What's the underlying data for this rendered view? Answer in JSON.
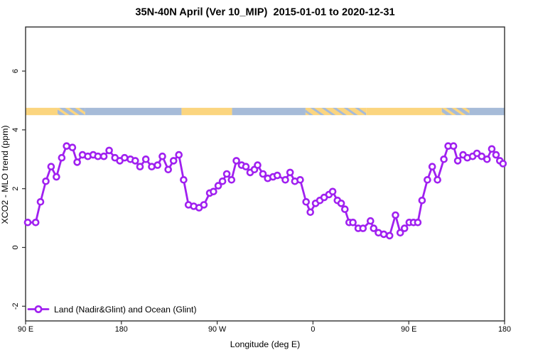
{
  "title": "35N-40N April (Ver 10_MIP)  2015-01-01 to 2020-12-31",
  "legend": {
    "label": "Land (Nadir&Glint) and Ocean (Glint)"
  },
  "colors": {
    "series_purple": "#A020F0",
    "land_yellow": "#FBD57F",
    "ocean_blue": "#A6BBD8",
    "frame": "#303030"
  },
  "chart_data": {
    "type": "line",
    "title": "35N-40N April (Ver 10_MIP)  2015-01-01 to 2020-12-31",
    "xlabel": "Longitude (deg E)",
    "ylabel": "XCO2 - MLO trend (ppm)",
    "xlim": [
      90,
      540
    ],
    "ylim": [
      -2.5,
      7.5
    ],
    "grid": false,
    "legend_position": "bottom-left",
    "x_ticks": [
      {
        "pos": 90,
        "label": "90 E"
      },
      {
        "pos": 180,
        "label": "180"
      },
      {
        "pos": 270,
        "label": "90 W"
      },
      {
        "pos": 360,
        "label": "0"
      },
      {
        "pos": 450,
        "label": "90 E"
      },
      {
        "pos": 540,
        "label": "180"
      }
    ],
    "y_ticks": [
      {
        "pos": -2,
        "label": "-2"
      },
      {
        "pos": 0,
        "label": "0"
      },
      {
        "pos": 2,
        "label": "2"
      },
      {
        "pos": 4,
        "label": "4"
      },
      {
        "pos": 6,
        "label": "6"
      }
    ],
    "series": [
      {
        "name": "Land (Nadir&Glint) and Ocean (Glint)",
        "color": "#A020F0",
        "marker": "open-circle",
        "x": [
          92,
          99.5,
          104,
          109,
          114,
          119,
          124,
          128.5,
          134,
          138.5,
          143.5,
          148.5,
          153.5,
          158,
          163.5,
          168.5,
          174,
          178.5,
          183,
          188.5,
          193,
          197.5,
          203,
          208.5,
          214,
          218.5,
          224,
          229,
          234,
          238.5,
          243,
          248,
          253,
          257.5,
          263,
          266.5,
          271,
          275,
          279,
          283.5,
          288,
          293,
          297,
          301,
          305,
          308,
          313,
          317.5,
          322.5,
          326.5,
          334,
          338.5,
          343,
          348,
          353.5,
          357.5,
          362.5,
          366.5,
          370.5,
          375,
          378.5,
          383,
          386.5,
          390,
          394,
          397.5,
          402.5,
          407,
          414,
          417,
          421.5,
          426.5,
          432,
          437.5,
          442,
          446,
          450.5,
          454.5,
          458.5,
          462.5,
          467.5,
          472,
          477,
          483,
          487,
          492,
          496,
          501,
          505,
          510,
          514,
          518.5,
          523.5,
          528,
          532,
          535.5,
          538.5
        ],
        "y": [
          0.85,
          0.85,
          1.55,
          2.25,
          2.75,
          2.4,
          3.05,
          3.45,
          3.4,
          2.9,
          3.15,
          3.1,
          3.15,
          3.1,
          3.1,
          3.3,
          3.05,
          2.95,
          3.05,
          3.0,
          2.95,
          2.75,
          3.0,
          2.75,
          2.8,
          3.1,
          2.65,
          2.95,
          3.15,
          2.3,
          1.45,
          1.4,
          1.35,
          1.45,
          1.85,
          1.9,
          2.1,
          2.25,
          2.5,
          2.3,
          2.95,
          2.8,
          2.75,
          2.55,
          2.65,
          2.8,
          2.5,
          2.35,
          2.4,
          2.45,
          2.3,
          2.55,
          2.25,
          2.3,
          1.55,
          1.2,
          1.5,
          1.6,
          1.7,
          1.8,
          1.9,
          1.6,
          1.5,
          1.3,
          0.85,
          0.85,
          0.65,
          0.65,
          0.9,
          0.65,
          0.5,
          0.45,
          0.4,
          1.1,
          0.5,
          0.65,
          0.85,
          0.85,
          0.85,
          1.6,
          2.3,
          2.75,
          2.3,
          3.0,
          3.45,
          3.45,
          2.95,
          3.15,
          3.05,
          3.1,
          3.2,
          3.1,
          3.0,
          3.35,
          3.15,
          2.95,
          2.85
        ]
      }
    ],
    "map_band": {
      "description": "land/ocean strip along 35N-40N",
      "value_from": 4.5,
      "value_to": 4.75,
      "land_color": "#FBD57F",
      "ocean_color": "#A6BBD8",
      "segments": [
        {
          "from": 90,
          "to": 120,
          "type": "land"
        },
        {
          "from": 120,
          "to": 146,
          "type": "mix_ocean"
        },
        {
          "from": 146,
          "to": 236.5,
          "type": "ocean"
        },
        {
          "from": 236.5,
          "to": 284,
          "type": "land"
        },
        {
          "from": 284,
          "to": 353,
          "type": "ocean"
        },
        {
          "from": 353,
          "to": 410,
          "type": "mix_land"
        },
        {
          "from": 410,
          "to": 481,
          "type": "land"
        },
        {
          "from": 481,
          "to": 507,
          "type": "mix_ocean"
        },
        {
          "from": 507,
          "to": 540,
          "type": "ocean"
        }
      ]
    }
  }
}
